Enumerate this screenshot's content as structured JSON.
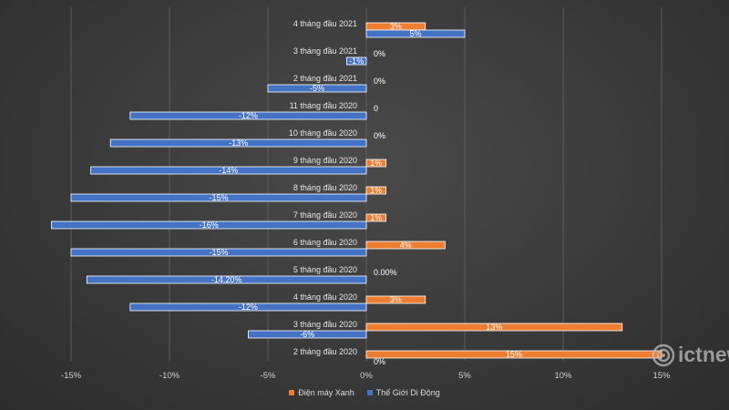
{
  "chart_data": {
    "type": "bar",
    "orientation": "horizontal",
    "categories": [
      "4 tháng đầu 2021",
      "3 tháng đầu 2021",
      "2 tháng đầu 2021",
      "11 tháng đầu 2020",
      "10 tháng đầu 2020",
      "9 tháng đầu 2020",
      "8 tháng đầu 2020",
      "7 tháng đầu 2020",
      "6 tháng đầu 2020",
      "5 tháng đầu 2020",
      "4 tháng đầu 2020",
      "3 tháng đầu 2020",
      "2 tháng đầu 2020"
    ],
    "series": [
      {
        "name": "Điện máy Xanh",
        "color": "#ed7d31",
        "values": [
          3,
          0,
          0,
          0,
          0,
          1,
          1,
          1,
          4,
          0,
          3,
          13,
          15
        ],
        "labels": [
          "3%",
          "0%",
          "0%",
          "0",
          "0%",
          "1%",
          "1%",
          "1%",
          "4%",
          "0.00%",
          "3%",
          "13%",
          "15%"
        ]
      },
      {
        "name": "Thế Giới Di Động",
        "color": "#4472c4",
        "values": [
          5,
          -1,
          -5,
          -12,
          -13,
          -14,
          -15,
          -16,
          -15,
          -14.2,
          -12,
          -6,
          0
        ],
        "labels": [
          "5%",
          "-1%",
          "-5%",
          "-12%",
          "-13%",
          "-14%",
          "-15%",
          "-16%",
          "-15%",
          "-14.20%",
          "-12%",
          "-6%",
          "0%"
        ]
      }
    ],
    "xlim": [
      -15,
      15
    ],
    "xticks": [
      "-15%",
      "-10%",
      "-5%",
      "0%",
      "5%",
      "10%",
      "15%"
    ],
    "grid": true,
    "legend": "bottom-center"
  },
  "watermark": "ictnews"
}
